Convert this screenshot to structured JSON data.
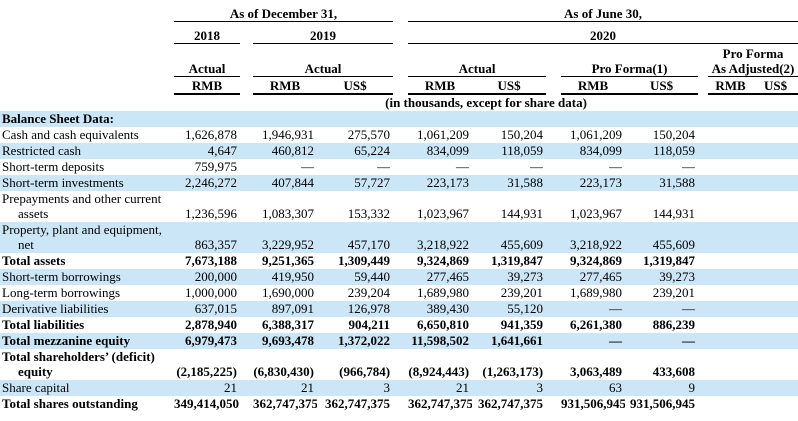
{
  "colors": {
    "stripe": "#cbe6f7",
    "rule": "#000000"
  },
  "header": {
    "dec31": "As of December 31,",
    "jun30": "As of June 30,",
    "y2018": "2018",
    "y2019": "2019",
    "y2020": "2020",
    "actual2018": "Actual",
    "actual2019": "Actual",
    "actual2020": "Actual",
    "proforma": "Pro Forma(1)",
    "proforma_adj_line1": "Pro Forma",
    "proforma_adj_line2": "As Adjusted(2)",
    "currencies": [
      "RMB",
      "RMB",
      "US$",
      "RMB",
      "US$",
      "RMB",
      "US$",
      "RMB",
      "US$"
    ],
    "note": "(in thousands, except for share data)"
  },
  "section_title": "Balance Sheet Data:",
  "rows": [
    {
      "label": "Cash and cash equivalents",
      "bold": false,
      "values": [
        "1,626,878",
        "1,946,931",
        "275,570",
        "1,061,209",
        "150,204",
        "1,061,209",
        "150,204",
        "",
        ""
      ]
    },
    {
      "label": "Restricted cash",
      "bold": false,
      "values": [
        "4,647",
        "460,812",
        "65,224",
        "834,099",
        "118,059",
        "834,099",
        "118,059",
        "",
        ""
      ]
    },
    {
      "label": "Short-term deposits",
      "bold": false,
      "values": [
        "759,975",
        "—",
        "—",
        "—",
        "—",
        "—",
        "—",
        "",
        ""
      ]
    },
    {
      "label": "Short-term investments",
      "bold": false,
      "values": [
        "2,246,272",
        "407,844",
        "57,727",
        "223,173",
        "31,588",
        "223,173",
        "31,588",
        "",
        ""
      ]
    },
    {
      "label": "Prepayments and other current",
      "label2": "assets",
      "bold": false,
      "values": [
        "1,236,596",
        "1,083,307",
        "153,332",
        "1,023,967",
        "144,931",
        "1,023,967",
        "144,931",
        "",
        ""
      ]
    },
    {
      "label": "Property, plant and equipment,",
      "label2": "net",
      "bold": false,
      "values": [
        "863,357",
        "3,229,952",
        "457,170",
        "3,218,922",
        "455,609",
        "3,218,922",
        "455,609",
        "",
        ""
      ]
    },
    {
      "label": "Total assets",
      "bold": true,
      "values": [
        "7,673,188",
        "9,251,365",
        "1,309,449",
        "9,324,869",
        "1,319,847",
        "9,324,869",
        "1,319,847",
        "",
        ""
      ]
    },
    {
      "label": "Short-term borrowings",
      "bold": false,
      "values": [
        "200,000",
        "419,950",
        "59,440",
        "277,465",
        "39,273",
        "277,465",
        "39,273",
        "",
        ""
      ]
    },
    {
      "label": "Long-term borrowings",
      "bold": false,
      "values": [
        "1,000,000",
        "1,690,000",
        "239,204",
        "1,689,980",
        "239,201",
        "1,689,980",
        "239,201",
        "",
        ""
      ]
    },
    {
      "label": "Derivative liabilities",
      "bold": false,
      "values": [
        "637,015",
        "897,091",
        "126,978",
        "389,430",
        "55,120",
        "—",
        "—",
        "",
        ""
      ]
    },
    {
      "label": "Total liabilities",
      "bold": true,
      "values": [
        "2,878,940",
        "6,388,317",
        "904,211",
        "6,650,810",
        "941,359",
        "6,261,380",
        "886,239",
        "",
        ""
      ]
    },
    {
      "label": "Total mezzanine equity",
      "bold": true,
      "values": [
        "6,979,473",
        "9,693,478",
        "1,372,022",
        "11,598,502",
        "1,641,661",
        "—",
        "—",
        "",
        ""
      ]
    },
    {
      "label": "Total shareholders’ (deficit)",
      "label2": "equity",
      "bold": true,
      "values": [
        "(2,185,225)",
        "(6,830,430)",
        "(966,784)",
        "(8,924,443)",
        "(1,263,173)",
        "3,063,489",
        "433,608",
        "",
        ""
      ]
    },
    {
      "label": "Share capital",
      "bold": false,
      "values": [
        "21",
        "21",
        "3",
        "21",
        "3",
        "63",
        "9",
        "",
        ""
      ]
    },
    {
      "label": "Total shares outstanding",
      "bold": true,
      "values": [
        "349,414,050",
        "362,747,375",
        "362,747,375",
        "362,747,375",
        "362,747,375",
        "931,506,945",
        "931,506,945",
        "",
        ""
      ]
    }
  ]
}
